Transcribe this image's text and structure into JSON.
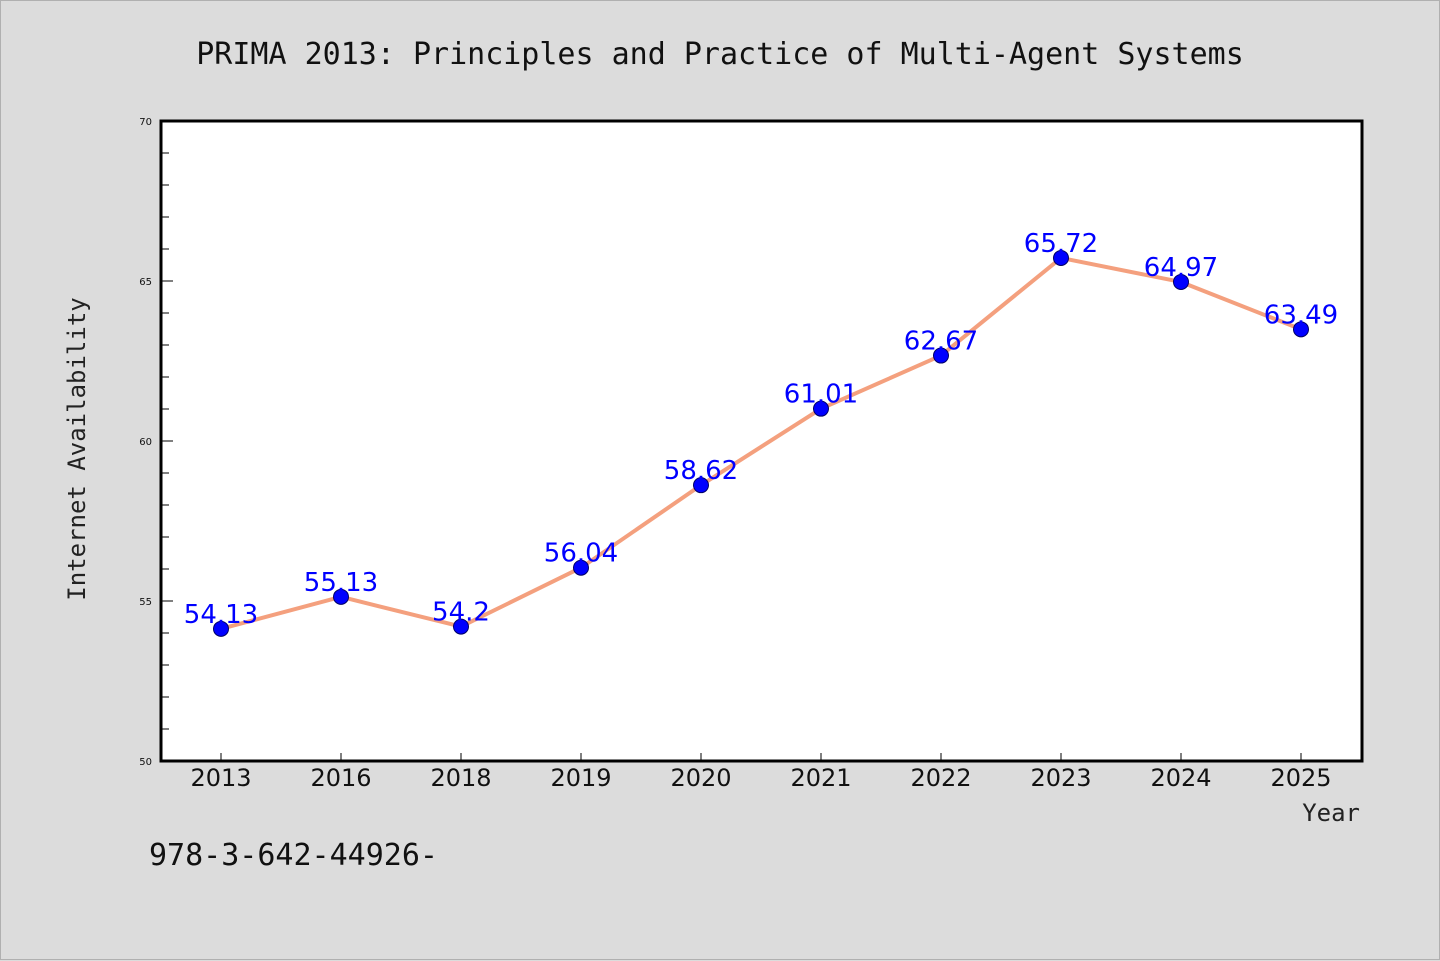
{
  "chart_data": {
    "type": "line",
    "title": "PRIMA 2013: Principles and Practice of Multi-Agent Systems",
    "xlabel": "Year",
    "ylabel": "Internet Availability",
    "categories": [
      "2013",
      "2016",
      "2018",
      "2019",
      "2020",
      "2021",
      "2022",
      "2023",
      "2024",
      "2025"
    ],
    "series": [
      {
        "values": [
          54.13,
          55.13,
          54.2,
          56.04,
          58.62,
          61.01,
          62.67,
          65.72,
          64.97,
          63.49
        ],
        "data_labels": [
          "54.13",
          "55.13",
          "54.2",
          "56.04",
          "58.62",
          "61.01",
          "62.67",
          "65.72",
          "64.97",
          "63.49"
        ],
        "line_color": "#f4a07e",
        "marker_color": "#0000ff"
      }
    ],
    "ylim": [
      50,
      70
    ],
    "yticks": [
      "50",
      "55",
      "60",
      "65",
      "70"
    ],
    "grid": false,
    "legend": "none"
  },
  "footer_text": "978-3-642-44926-"
}
